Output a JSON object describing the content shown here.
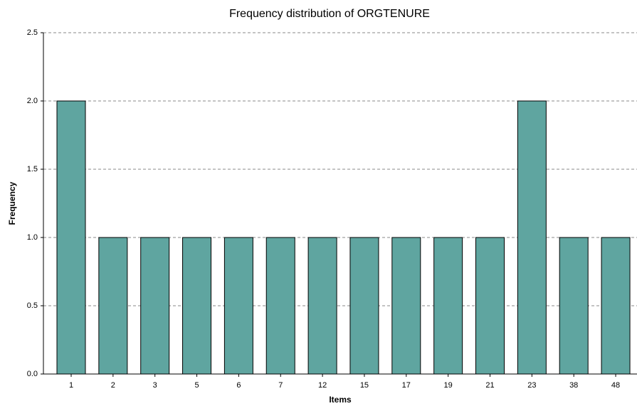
{
  "chart_data": {
    "type": "bar",
    "title": "Frequency distribution of ORGTENURE",
    "xlabel": "Items",
    "ylabel": "Frequency",
    "categories": [
      "1",
      "2",
      "3",
      "5",
      "6",
      "7",
      "12",
      "15",
      "17",
      "19",
      "21",
      "23",
      "38",
      "48"
    ],
    "values": [
      2,
      1,
      1,
      1,
      1,
      1,
      1,
      1,
      1,
      1,
      1,
      2,
      1,
      1
    ],
    "color": "#5fa5a0",
    "ylim": [
      0,
      2.5
    ],
    "yticks": [
      {
        "value": 0,
        "label": "0.0"
      },
      {
        "value": 0.5,
        "label": "0.5"
      },
      {
        "value": 1,
        "label": "1.0"
      },
      {
        "value": 1.5,
        "label": "1.5"
      },
      {
        "value": 2,
        "label": "2.0"
      },
      {
        "value": 2.5,
        "label": "2.5"
      }
    ],
    "grid": true
  }
}
